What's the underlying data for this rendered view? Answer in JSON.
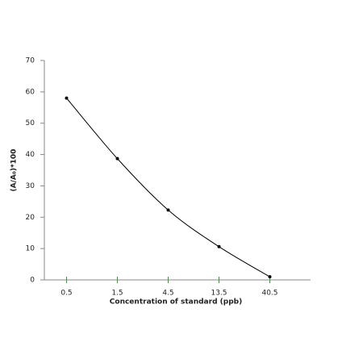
{
  "chart_data": {
    "type": "line",
    "x_label": "Concentration of standard  (ppb)",
    "y_label": "(A/A₀)*100",
    "categories": [
      "0.5",
      "1.5",
      "4.5",
      "13.5",
      "40.5"
    ],
    "series": [
      {
        "color": "#000000",
        "values": [
          58,
          38.7,
          22.3,
          10.6,
          1
        ]
      }
    ],
    "ylim": [
      0,
      70
    ],
    "yticks": [
      0,
      10,
      20,
      30,
      40,
      50,
      60,
      70
    ],
    "tick_color": "#2e9e2e"
  }
}
